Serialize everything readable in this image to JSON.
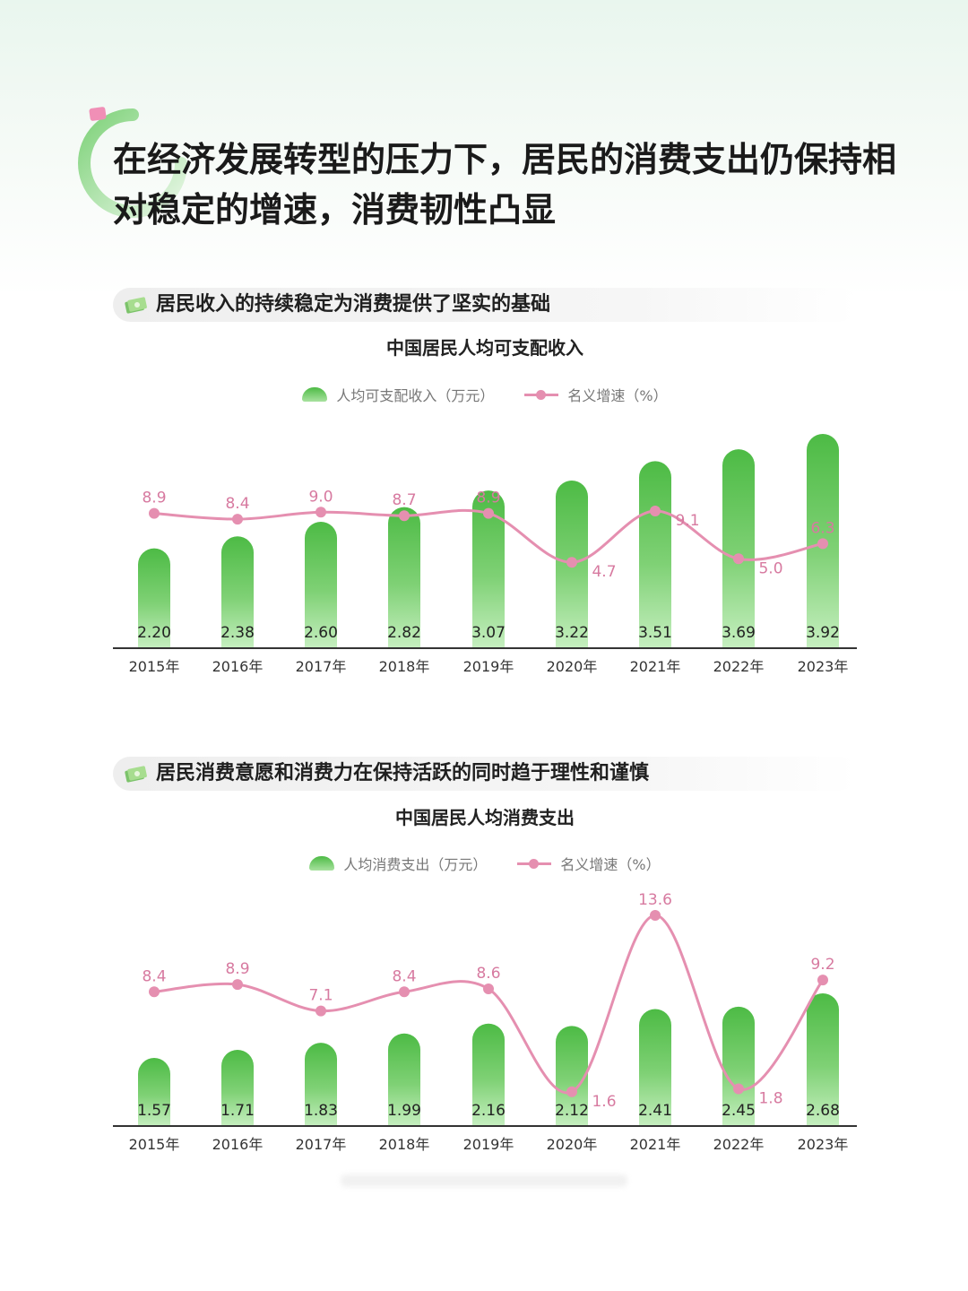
{
  "headline": "在经济发展转型的压力下，居民的消费支出仍保持相对稳定的增速，消费韧性凸显",
  "colors": {
    "bar_top": "#4dbb45",
    "bar_bottom": "#c6efc0",
    "line": "#e58fb0",
    "axis": "#333333"
  },
  "sections": [
    {
      "title": "居民收入的持续稳定为消费提供了坚实的基础",
      "icon": "money-icon",
      "chart_title": "中国居民人均可支配收入",
      "legend_bar": "人均可支配收入（万元）",
      "legend_line": "名义增速（%）"
    },
    {
      "title": "居民消费意愿和消费力在保持活跃的同时趋于理性和谨慎",
      "icon": "money-icon",
      "chart_title": "中国居民人均消费支出",
      "legend_bar": "人均消费支出（万元）",
      "legend_line": "名义增速（%）"
    }
  ],
  "chart_data": [
    {
      "type": "bar",
      "title": "中国居民人均可支配收入",
      "categories": [
        "2015年",
        "2016年",
        "2017年",
        "2018年",
        "2019年",
        "2020年",
        "2021年",
        "2022年",
        "2023年"
      ],
      "series": [
        {
          "name": "人均可支配收入（万元）",
          "type": "bar",
          "values": [
            2.2,
            2.38,
            2.6,
            2.82,
            3.07,
            3.22,
            3.51,
            3.69,
            3.92
          ],
          "labels": [
            "2.20",
            "2.38",
            "2.60",
            "2.82",
            "3.07",
            "3.22",
            "3.51",
            "3.69",
            "3.92"
          ]
        },
        {
          "name": "名义增速（%）",
          "type": "line",
          "values": [
            8.9,
            8.4,
            9.0,
            8.7,
            8.9,
            4.7,
            9.1,
            5.0,
            6.3
          ],
          "labels": [
            "8.9",
            "8.4",
            "9.0",
            "8.7",
            "8.9",
            "4.7",
            "9.1",
            "5.0",
            "6.3"
          ]
        }
      ],
      "legend": "top-center",
      "grid": false
    },
    {
      "type": "bar",
      "title": "中国居民人均消费支出",
      "categories": [
        "2015年",
        "2016年",
        "2017年",
        "2018年",
        "2019年",
        "2020年",
        "2021年",
        "2022年",
        "2023年"
      ],
      "series": [
        {
          "name": "人均消费支出（万元）",
          "type": "bar",
          "values": [
            1.57,
            1.71,
            1.83,
            1.99,
            2.16,
            2.12,
            2.41,
            2.45,
            2.68
          ],
          "labels": [
            "1.57",
            "1.71",
            "1.83",
            "1.99",
            "2.16",
            "2.12",
            "2.41",
            "2.45",
            "2.68"
          ]
        },
        {
          "name": "名义增速（%）",
          "type": "line",
          "values": [
            8.4,
            8.9,
            7.1,
            8.4,
            8.6,
            1.6,
            13.6,
            1.8,
            9.2
          ],
          "labels": [
            "8.4",
            "8.9",
            "7.1",
            "8.4",
            "8.6",
            "1.6",
            "13.6",
            "1.8",
            "9.2"
          ]
        }
      ],
      "legend": "top-center",
      "grid": false
    }
  ]
}
